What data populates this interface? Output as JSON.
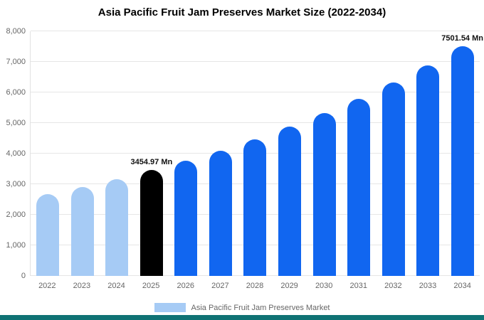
{
  "chart_data": {
    "type": "bar",
    "title": "Asia Pacific Fruit Jam Preserves Market Size (2022-2034)",
    "unit": "Mn",
    "categories": [
      "2022",
      "2023",
      "2024",
      "2025",
      "2026",
      "2027",
      "2028",
      "2029",
      "2030",
      "2031",
      "2032",
      "2033",
      "2034"
    ],
    "series": [
      {
        "name": "Asia Pacific Fruit Jam Preserves Market",
        "values": [
          2668,
          2908,
          3169,
          3454.97,
          3766,
          4105,
          4475,
          4877,
          5316,
          5795,
          6316,
          6885,
          7501.54
        ]
      }
    ],
    "ylim": [
      0,
      8000
    ],
    "yticks": [
      0,
      1000,
      2000,
      3000,
      4000,
      5000,
      6000,
      7000,
      8000
    ],
    "ytick_labels": [
      "0",
      "1,000",
      "2,000",
      "3,000",
      "4,000",
      "5,000",
      "6,000",
      "7,000",
      "8,000"
    ],
    "grid": "horizontal",
    "legend_position": "bottom",
    "annotations": [
      {
        "index": 3,
        "text": "3454.97 Mn"
      },
      {
        "index": 12,
        "text": "7501.54 Mn"
      }
    ],
    "bar_colors": [
      "#a6cbf5",
      "#a6cbf5",
      "#a6cbf5",
      "#000000",
      "#1166f0",
      "#1166f0",
      "#1166f0",
      "#1166f0",
      "#1166f0",
      "#1166f0",
      "#1166f0",
      "#1166f0",
      "#1166f0"
    ]
  },
  "legend": {
    "label": "Asia Pacific Fruit Jam Preserves Market",
    "swatch_color": "#a6cbf5"
  },
  "colors": {
    "past_bar": "#a6cbf5",
    "highlight_bar": "#000000",
    "future_bar": "#1166f0",
    "grid": "#e6e6e6",
    "axis_text": "#666666",
    "footer_strip": "#0f7274"
  }
}
